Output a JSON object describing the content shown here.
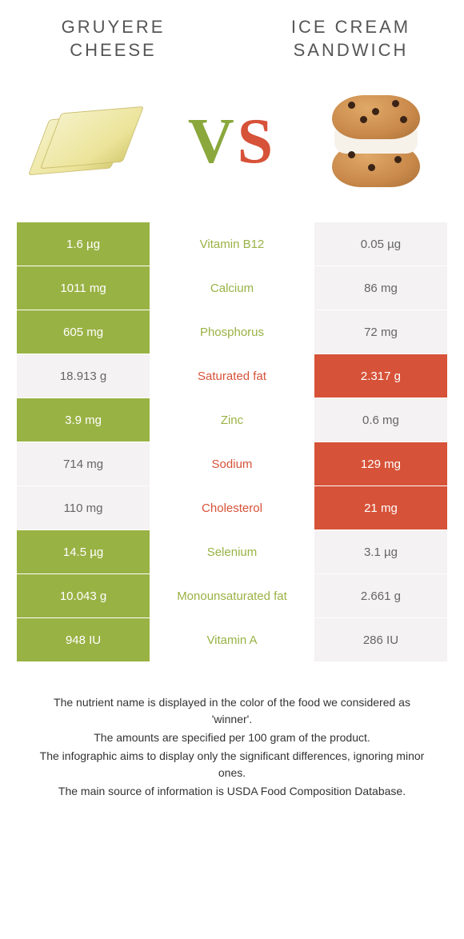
{
  "title_left": "Gruyere Cheese",
  "title_right": "Ice Cream Sandwich",
  "colors": {
    "left_winner_bg": "#99b244",
    "right_winner_bg": "#d65238",
    "loser_bg": "#f4f2f2",
    "nutrient_left_color": "#99b244",
    "nutrient_right_color": "#d65238",
    "vs_v": "#8aa83c",
    "vs_s": "#d65238",
    "background": "#ffffff"
  },
  "rows": [
    {
      "left": "1.6 µg",
      "nutrient": "Vitamin B12",
      "right": "0.05 µg",
      "winner": "left"
    },
    {
      "left": "1011 mg",
      "nutrient": "Calcium",
      "right": "86 mg",
      "winner": "left"
    },
    {
      "left": "605 mg",
      "nutrient": "Phosphorus",
      "right": "72 mg",
      "winner": "left"
    },
    {
      "left": "18.913 g",
      "nutrient": "Saturated fat",
      "right": "2.317 g",
      "winner": "right"
    },
    {
      "left": "3.9 mg",
      "nutrient": "Zinc",
      "right": "0.6 mg",
      "winner": "left"
    },
    {
      "left": "714 mg",
      "nutrient": "Sodium",
      "right": "129 mg",
      "winner": "right"
    },
    {
      "left": "110 mg",
      "nutrient": "Cholesterol",
      "right": "21 mg",
      "winner": "right"
    },
    {
      "left": "14.5 µg",
      "nutrient": "Selenium",
      "right": "3.1 µg",
      "winner": "left"
    },
    {
      "left": "10.043 g",
      "nutrient": "Monounsaturated fat",
      "right": "2.661 g",
      "winner": "left"
    },
    {
      "left": "948 IU",
      "nutrient": "Vitamin A",
      "right": "286 IU",
      "winner": "left"
    }
  ],
  "footnotes": [
    "The nutrient name is displayed in the color of the food we considered as 'winner'.",
    "The amounts are specified per 100 gram of the product.",
    "The infographic aims to display only the significant differences, ignoring minor ones.",
    "The main source of information is USDA Food Composition Database."
  ]
}
